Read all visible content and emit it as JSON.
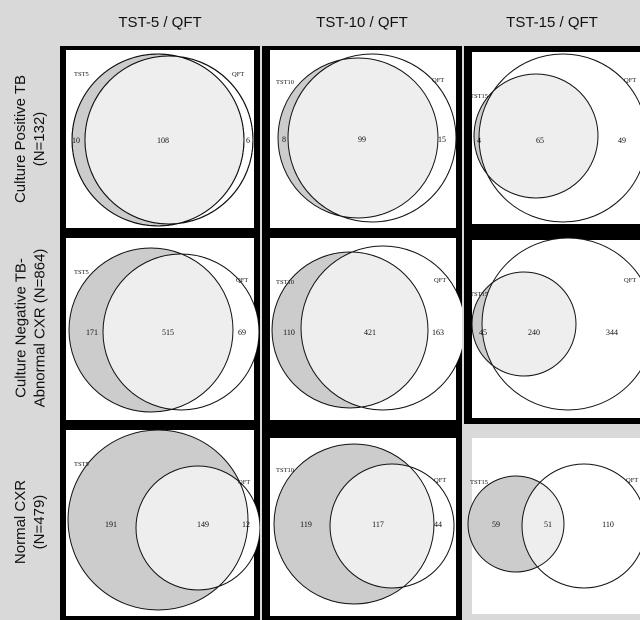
{
  "columns": [
    "TST-5 / QFT",
    "TST-10 / QFT",
    "TST-15 / QFT"
  ],
  "rows": [
    {
      "line1": "Culture  Positive TB",
      "line2": "(N=132)"
    },
    {
      "line1": "Culture Negative TB-",
      "line2": "Abnormal CXR (N=864)"
    },
    {
      "line1": "Normal CXR",
      "line2": "(N=479)"
    }
  ],
  "colors": {
    "tst_fill": "#cccccc",
    "overlap_fill": "#eeeeee",
    "qft_fill": "#ffffff",
    "background": "#d9d9d9"
  },
  "cells": [
    {
      "tst_label": "TST5",
      "qft_label": "QFT",
      "tst_only": "10",
      "both": "108",
      "qft_only": "6"
    },
    {
      "tst_label": "TST10",
      "qft_label": "QFT",
      "tst_only": "8",
      "both": "99",
      "qft_only": "15"
    },
    {
      "tst_label": "TST15",
      "qft_label": "QFT",
      "tst_only": "4",
      "both": "65",
      "qft_only": "49"
    },
    {
      "tst_label": "TST5",
      "qft_label": "QFT",
      "tst_only": "171",
      "both": "515",
      "qft_only": "69"
    },
    {
      "tst_label": "TST10",
      "qft_label": "QFT",
      "tst_only": "110",
      "both": "421",
      "qft_only": "163"
    },
    {
      "tst_label": "TST15",
      "qft_label": "QFT",
      "tst_only": "45",
      "both": "240",
      "qft_only": "344"
    },
    {
      "tst_label": "TST5",
      "qft_label": "QFT",
      "tst_only": "191",
      "both": "149",
      "qft_only": "12"
    },
    {
      "tst_label": "TST10",
      "qft_label": "QFT",
      "tst_only": "119",
      "both": "117",
      "qft_only": "44"
    },
    {
      "tst_label": "TST15",
      "qft_label": "QFT",
      "tst_only": "59",
      "both": "51",
      "qft_only": "110"
    }
  ]
}
